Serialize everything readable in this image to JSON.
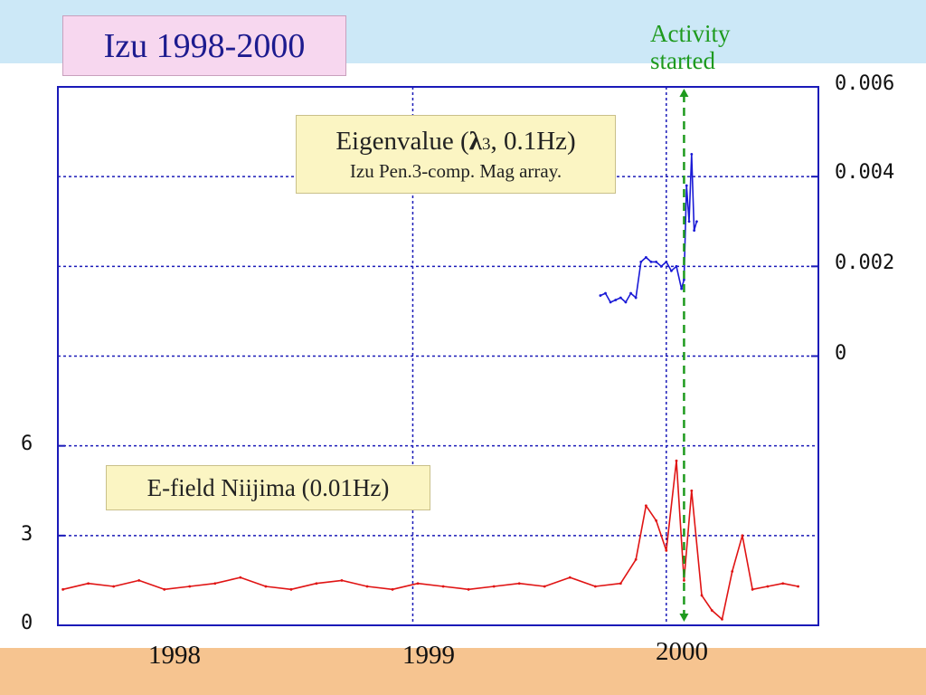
{
  "slide": {
    "title": "Izu 1998-2000",
    "activity_label": [
      "Activity",
      "started"
    ]
  },
  "colors": {
    "top_band": "#cce8f7",
    "bottom_band": "#f6c490",
    "eigen_series": "#1a1ad6",
    "efield_series": "#e01414",
    "activity_line": "#1e9a1e",
    "frame": "#1a1ab8"
  },
  "chart_data": {
    "type": "line",
    "x_axis": {
      "ticks": [
        "1998",
        "1999",
        "2000"
      ],
      "range": [
        1997.6,
        2000.6
      ]
    },
    "y_right": {
      "ticks": [
        "0",
        "0.002",
        "0.004",
        "0.006"
      ],
      "range": [
        -0.006,
        0.006
      ]
    },
    "y_left": {
      "ticks": [
        "0",
        "3",
        "6"
      ],
      "range": [
        0,
        18
      ]
    },
    "grid": true,
    "annotations": [
      {
        "title": "Eigenvalue (",
        "symbol": "λ",
        "sub": "3",
        "rest": ", 0.1Hz)",
        "subtitle": "Izu Pen.3-comp. Mag array."
      },
      {
        "title": "E-field Niijima (0.01Hz)"
      }
    ],
    "activity_marker": {
      "x": 2000.07
    },
    "series": [
      {
        "axis": "right",
        "x": [
          1999.74,
          1999.76,
          1999.78,
          1999.8,
          1999.82,
          1999.84,
          1999.86,
          1999.88,
          1999.9,
          1999.92,
          1999.94,
          1999.96,
          1999.98,
          2000.0,
          2000.02,
          2000.04,
          2000.06,
          2000.07,
          2000.08,
          2000.09,
          2000.1,
          2000.11,
          2000.12
        ],
        "values": [
          0.00135,
          0.0014,
          0.0012,
          0.00125,
          0.0013,
          0.0012,
          0.0014,
          0.0013,
          0.0021,
          0.0022,
          0.0021,
          0.0021,
          0.002,
          0.0021,
          0.0019,
          0.002,
          0.0015,
          0.0017,
          0.0038,
          0.003,
          0.0045,
          0.0028,
          0.003
        ]
      },
      {
        "axis": "left",
        "x": [
          1997.62,
          1997.72,
          1997.82,
          1997.92,
          1998.02,
          1998.12,
          1998.22,
          1998.32,
          1998.42,
          1998.52,
          1998.62,
          1998.72,
          1998.82,
          1998.92,
          1999.02,
          1999.12,
          1999.22,
          1999.32,
          1999.42,
          1999.52,
          1999.62,
          1999.72,
          1999.82,
          1999.88,
          1999.92,
          1999.96,
          2000.0,
          2000.04,
          2000.07,
          2000.1,
          2000.14,
          2000.18,
          2000.22,
          2000.26,
          2000.3,
          2000.34,
          2000.4,
          2000.46,
          2000.52
        ],
        "values": [
          1.2,
          1.4,
          1.3,
          1.5,
          1.2,
          1.3,
          1.4,
          1.6,
          1.3,
          1.2,
          1.4,
          1.5,
          1.3,
          1.2,
          1.4,
          1.3,
          1.2,
          1.3,
          1.4,
          1.3,
          1.6,
          1.3,
          1.4,
          2.2,
          4.0,
          3.5,
          2.5,
          5.5,
          1.5,
          4.5,
          1.0,
          0.5,
          0.2,
          1.8,
          3.0,
          1.2,
          1.3,
          1.4,
          1.3
        ]
      }
    ]
  }
}
